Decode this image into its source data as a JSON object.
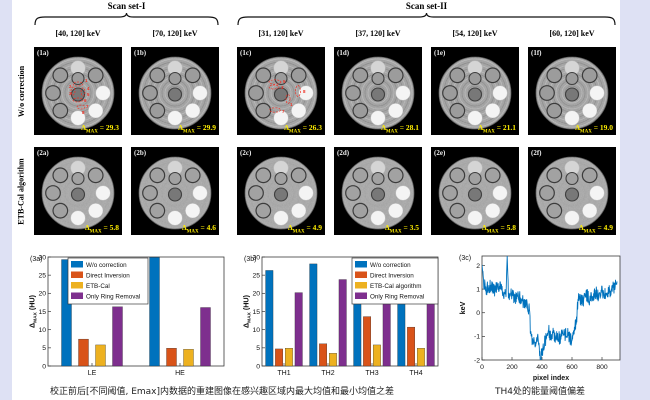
{
  "page": {
    "background": "#dee1f4",
    "panel_background": "#ffffff"
  },
  "scan_sets": [
    {
      "label": "Scan set-I",
      "col_start": 0,
      "col_end": 1
    },
    {
      "label": "Scan set-II",
      "col_start": 2,
      "col_end": 5
    }
  ],
  "energy_windows": [
    "[40, 120] keV",
    "[70, 120] keV",
    "[31, 120] keV",
    "[37, 120] keV",
    "[54, 120] keV",
    "[60, 120] keV"
  ],
  "image_grid": {
    "delta_symbol": "Δ",
    "delta_subscript": "MAX",
    "rows": [
      {
        "label": "W/o correction",
        "cells": [
          {
            "tag": "(1a)",
            "dmax": "29.3",
            "annotations": [
              "1",
              "2",
              "3",
              "4",
              "5",
              "6",
              "7",
              "8"
            ]
          },
          {
            "tag": "(1b)",
            "dmax": "29.9",
            "annotations": []
          },
          {
            "tag": "(1c)",
            "dmax": "26.3",
            "annotations": [
              "5",
              "3",
              "8",
              "1",
              "7"
            ]
          },
          {
            "tag": "(1d)",
            "dmax": "28.1",
            "annotations": []
          },
          {
            "tag": "(1e)",
            "dmax": "21.1",
            "annotations": []
          },
          {
            "tag": "(1f)",
            "dmax": "19.0",
            "annotations": []
          }
        ]
      },
      {
        "label": "ETB-Cal algorithm",
        "cells": [
          {
            "tag": "(2a)",
            "dmax": "5.8",
            "annotations": []
          },
          {
            "tag": "(2b)",
            "dmax": "4.6",
            "annotations": []
          },
          {
            "tag": "(2c)",
            "dmax": "4.9",
            "annotations": []
          },
          {
            "tag": "(2d)",
            "dmax": "3.5",
            "annotations": []
          },
          {
            "tag": "(2e)",
            "dmax": "5.8",
            "annotations": []
          },
          {
            "tag": "(2f)",
            "dmax": "4.9",
            "annotations": []
          }
        ]
      }
    ]
  },
  "chart_data": [
    {
      "id": "3a",
      "panel_label": "(3a)",
      "type": "bar",
      "categories": [
        "LE",
        "HE"
      ],
      "series": [
        {
          "name": "W/o correction",
          "color": "#0072BD",
          "values": [
            29.3,
            29.9
          ]
        },
        {
          "name": "Direct Inversion",
          "color": "#D95319",
          "values": [
            7.4,
            4.9
          ]
        },
        {
          "name": "ETB-Cal",
          "color": "#EDB120",
          "values": [
            5.8,
            4.6
          ]
        },
        {
          "name": "Only Ring Removal",
          "color": "#7E2F8E",
          "values": [
            16.3,
            16.1
          ]
        }
      ],
      "ylabel": {
        "pre": "Δ",
        "sub": "MAX",
        "post": " (HU)"
      },
      "ylim": [
        0,
        30
      ],
      "ytick_step": 5,
      "legend_position": "inner-top-left",
      "grid": false
    },
    {
      "id": "3b",
      "panel_label": "(3b)",
      "type": "bar",
      "categories": [
        "TH1",
        "TH2",
        "TH3",
        "TH4"
      ],
      "series": [
        {
          "name": "W/o correction",
          "color": "#0072BD",
          "values": [
            26.3,
            28.1,
            21.1,
            19.0
          ]
        },
        {
          "name": "Direct Inversion",
          "color": "#D95319",
          "values": [
            4.7,
            6.1,
            13.6,
            10.7
          ]
        },
        {
          "name": "ETB-Cal algorithm",
          "color": "#EDB120",
          "values": [
            4.9,
            3.5,
            5.8,
            4.9
          ]
        },
        {
          "name": "Only Ring Removal",
          "color": "#7E2F8E",
          "values": [
            20.2,
            23.8,
            17.9,
            17.9
          ]
        }
      ],
      "ylabel": {
        "pre": "Δ",
        "sub": "MAX",
        "post": " (HU)"
      },
      "ylim": [
        0,
        30
      ],
      "ytick_step": 5,
      "legend_position": "inner-top-right",
      "grid": false
    },
    {
      "id": "3c",
      "panel_label": "(3c)",
      "type": "line",
      "color": "#0072BD",
      "xlabel": "pixel index",
      "ylabel": "keV",
      "xlim": [
        0,
        920
      ],
      "ylim": [
        -2,
        2.4
      ],
      "xticks": [
        0,
        200,
        400,
        600,
        800
      ],
      "yticks": [
        -2,
        -1,
        0,
        1,
        2
      ],
      "trend": [
        [
          0,
          1.85
        ],
        [
          10,
          1.25
        ],
        [
          30,
          1.0
        ],
        [
          60,
          1.15
        ],
        [
          80,
          0.95
        ],
        [
          100,
          1.05
        ],
        [
          120,
          1.15
        ],
        [
          140,
          0.85
        ],
        [
          160,
          0.9
        ],
        [
          168,
          2.4
        ],
        [
          176,
          0.85
        ],
        [
          200,
          0.75
        ],
        [
          220,
          0.6
        ],
        [
          240,
          0.75
        ],
        [
          260,
          0.55
        ],
        [
          280,
          0.45
        ],
        [
          300,
          0.35
        ],
        [
          315,
          0.1
        ],
        [
          325,
          -0.9
        ],
        [
          335,
          -1.3
        ],
        [
          345,
          -1.0
        ],
        [
          360,
          -1.45
        ],
        [
          375,
          -1.1
        ],
        [
          390,
          -1.95
        ],
        [
          400,
          -1.7
        ],
        [
          415,
          -1.3
        ],
        [
          430,
          -1.0
        ],
        [
          445,
          -0.75
        ],
        [
          460,
          -1.05
        ],
        [
          475,
          -0.85
        ],
        [
          490,
          -1.1
        ],
        [
          505,
          -0.95
        ],
        [
          520,
          -1.15
        ],
        [
          535,
          -0.9
        ],
        [
          550,
          -1.0
        ],
        [
          565,
          -0.8
        ],
        [
          580,
          -1.05
        ],
        [
          595,
          -1.15
        ],
        [
          610,
          -0.95
        ],
        [
          620,
          -0.5
        ],
        [
          630,
          -0.3
        ],
        [
          640,
          0.5
        ],
        [
          650,
          0.65
        ],
        [
          665,
          0.45
        ],
        [
          680,
          0.6
        ],
        [
          700,
          0.75
        ],
        [
          720,
          0.55
        ],
        [
          740,
          0.7
        ],
        [
          760,
          0.85
        ],
        [
          780,
          0.65
        ],
        [
          800,
          0.9
        ],
        [
          820,
          0.75
        ],
        [
          840,
          0.85
        ],
        [
          860,
          0.95
        ],
        [
          880,
          1.1
        ],
        [
          900,
          1.45
        ]
      ]
    }
  ],
  "captions": {
    "left": "校正前后[不同阈值, Emax]内数据的重建图像在感兴趣区域内最大均值和最小均值之差",
    "right": "TH4处的能量阈值偏差"
  }
}
